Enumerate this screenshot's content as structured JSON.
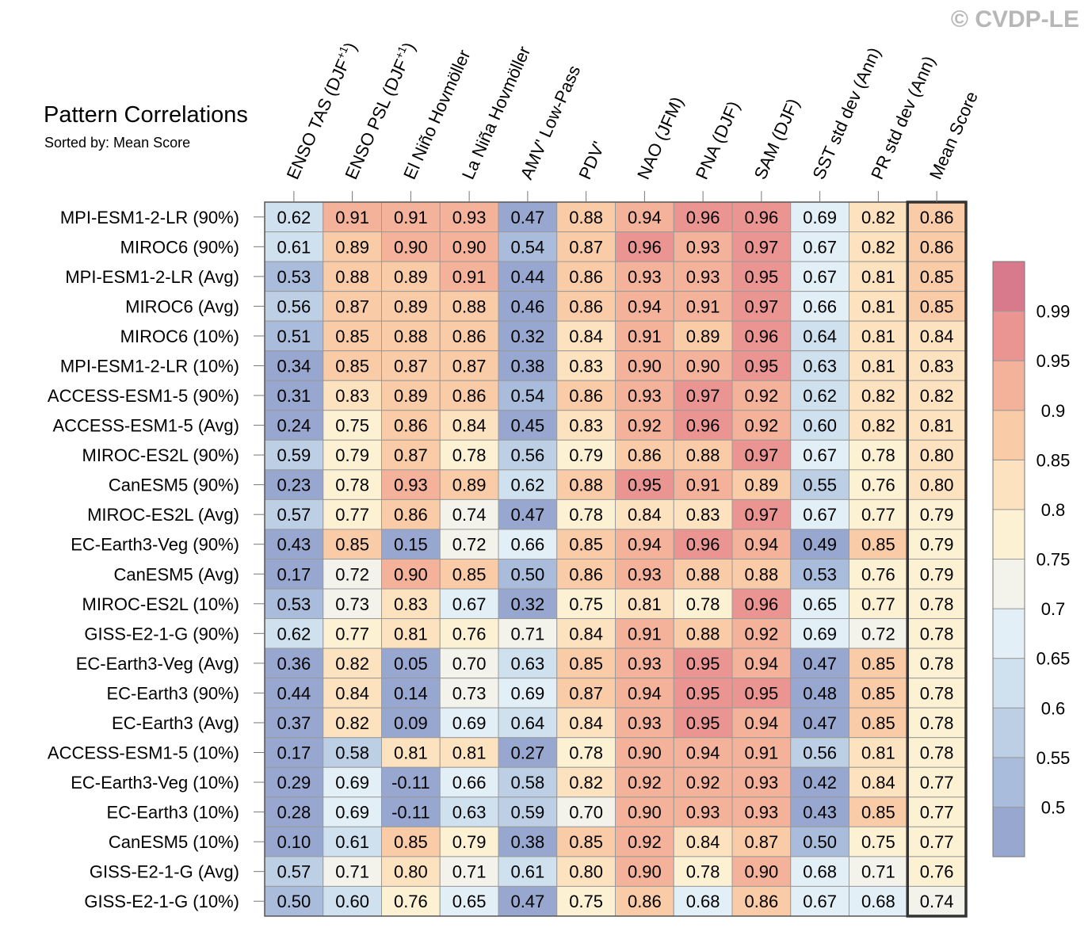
{
  "watermark": "© CVDP-LE",
  "chart_data": {
    "type": "heatmap",
    "title": "Pattern Correlations",
    "subtitle": "Sorted by: Mean Score",
    "columns": [
      "ENSO TAS (DJF⁺¹)",
      "ENSO PSL (DJF⁺¹)",
      "El Niño Hovmöller",
      "La Niña Hovmöller",
      "AMV' Low-Pass",
      "PDV'",
      "NAO (JFM)",
      "PNA (DJF)",
      "SAM (DJF)",
      "SST std dev (Ann)",
      "PR std dev (Ann)",
      "Mean Score"
    ],
    "rows": [
      "MPI-ESM1-2-LR (90%)",
      "MIROC6 (90%)",
      "MPI-ESM1-2-LR (Avg)",
      "MIROC6 (Avg)",
      "MIROC6 (10%)",
      "MPI-ESM1-2-LR (10%)",
      "ACCESS-ESM1-5 (90%)",
      "ACCESS-ESM1-5 (Avg)",
      "MIROC-ES2L (90%)",
      "CanESM5 (90%)",
      "MIROC-ES2L (Avg)",
      "EC-Earth3-Veg (90%)",
      "CanESM5 (Avg)",
      "MIROC-ES2L (10%)",
      "GISS-E2-1-G (90%)",
      "EC-Earth3-Veg (Avg)",
      "EC-Earth3 (90%)",
      "EC-Earth3 (Avg)",
      "ACCESS-ESM1-5 (10%)",
      "EC-Earth3-Veg (10%)",
      "EC-Earth3 (10%)",
      "CanESM5 (10%)",
      "GISS-E2-1-G (Avg)",
      "GISS-E2-1-G (10%)"
    ],
    "values": [
      [
        "0.62",
        "0.91",
        "0.91",
        "0.93",
        "0.47",
        "0.88",
        "0.94",
        "0.96",
        "0.96",
        "0.69",
        "0.82",
        "0.86"
      ],
      [
        "0.61",
        "0.89",
        "0.90",
        "0.90",
        "0.54",
        "0.87",
        "0.96",
        "0.93",
        "0.97",
        "0.67",
        "0.82",
        "0.86"
      ],
      [
        "0.53",
        "0.88",
        "0.89",
        "0.91",
        "0.44",
        "0.86",
        "0.93",
        "0.93",
        "0.95",
        "0.67",
        "0.81",
        "0.85"
      ],
      [
        "0.56",
        "0.87",
        "0.89",
        "0.88",
        "0.46",
        "0.86",
        "0.94",
        "0.91",
        "0.97",
        "0.66",
        "0.81",
        "0.85"
      ],
      [
        "0.51",
        "0.85",
        "0.88",
        "0.86",
        "0.32",
        "0.84",
        "0.91",
        "0.89",
        "0.96",
        "0.64",
        "0.81",
        "0.84"
      ],
      [
        "0.34",
        "0.85",
        "0.87",
        "0.87",
        "0.38",
        "0.83",
        "0.90",
        "0.90",
        "0.95",
        "0.63",
        "0.81",
        "0.83"
      ],
      [
        "0.31",
        "0.83",
        "0.89",
        "0.86",
        "0.54",
        "0.86",
        "0.93",
        "0.97",
        "0.92",
        "0.62",
        "0.82",
        "0.82"
      ],
      [
        "0.24",
        "0.75",
        "0.86",
        "0.84",
        "0.45",
        "0.83",
        "0.92",
        "0.96",
        "0.92",
        "0.60",
        "0.82",
        "0.81"
      ],
      [
        "0.59",
        "0.79",
        "0.87",
        "0.78",
        "0.56",
        "0.79",
        "0.86",
        "0.88",
        "0.97",
        "0.67",
        "0.78",
        "0.80"
      ],
      [
        "0.23",
        "0.78",
        "0.93",
        "0.89",
        "0.62",
        "0.88",
        "0.95",
        "0.91",
        "0.89",
        "0.55",
        "0.76",
        "0.80"
      ],
      [
        "0.57",
        "0.77",
        "0.86",
        "0.74",
        "0.47",
        "0.78",
        "0.84",
        "0.83",
        "0.97",
        "0.67",
        "0.77",
        "0.79"
      ],
      [
        "0.43",
        "0.85",
        "0.15",
        "0.72",
        "0.66",
        "0.85",
        "0.94",
        "0.96",
        "0.94",
        "0.49",
        "0.85",
        "0.79"
      ],
      [
        "0.17",
        "0.72",
        "0.90",
        "0.85",
        "0.50",
        "0.86",
        "0.93",
        "0.88",
        "0.88",
        "0.53",
        "0.76",
        "0.79"
      ],
      [
        "0.53",
        "0.73",
        "0.83",
        "0.67",
        "0.32",
        "0.75",
        "0.81",
        "0.78",
        "0.96",
        "0.65",
        "0.77",
        "0.78"
      ],
      [
        "0.62",
        "0.77",
        "0.81",
        "0.76",
        "0.71",
        "0.84",
        "0.91",
        "0.88",
        "0.92",
        "0.69",
        "0.72",
        "0.78"
      ],
      [
        "0.36",
        "0.82",
        "0.05",
        "0.70",
        "0.63",
        "0.85",
        "0.93",
        "0.95",
        "0.94",
        "0.47",
        "0.85",
        "0.78"
      ],
      [
        "0.44",
        "0.84",
        "0.14",
        "0.73",
        "0.69",
        "0.87",
        "0.94",
        "0.95",
        "0.95",
        "0.48",
        "0.85",
        "0.78"
      ],
      [
        "0.37",
        "0.82",
        "0.09",
        "0.69",
        "0.64",
        "0.84",
        "0.93",
        "0.95",
        "0.94",
        "0.47",
        "0.85",
        "0.78"
      ],
      [
        "0.17",
        "0.58",
        "0.81",
        "0.81",
        "0.27",
        "0.78",
        "0.90",
        "0.94",
        "0.91",
        "0.56",
        "0.81",
        "0.78"
      ],
      [
        "0.29",
        "0.69",
        "-0.11",
        "0.66",
        "0.58",
        "0.82",
        "0.92",
        "0.92",
        "0.93",
        "0.42",
        "0.84",
        "0.77"
      ],
      [
        "0.28",
        "0.69",
        "-0.11",
        "0.63",
        "0.59",
        "0.70",
        "0.90",
        "0.93",
        "0.93",
        "0.43",
        "0.85",
        "0.77"
      ],
      [
        "0.10",
        "0.61",
        "0.85",
        "0.79",
        "0.38",
        "0.85",
        "0.92",
        "0.84",
        "0.87",
        "0.50",
        "0.75",
        "0.77"
      ],
      [
        "0.57",
        "0.71",
        "0.80",
        "0.71",
        "0.61",
        "0.80",
        "0.90",
        "0.78",
        "0.90",
        "0.68",
        "0.71",
        "0.76"
      ],
      [
        "0.50",
        "0.60",
        "0.76",
        "0.65",
        "0.47",
        "0.75",
        "0.86",
        "0.68",
        "0.86",
        "0.67",
        "0.68",
        "0.74"
      ]
    ],
    "colorbar": {
      "ticks": [
        "0.5",
        "0.55",
        "0.6",
        "0.65",
        "0.7",
        "0.75",
        "0.8",
        "0.85",
        "0.9",
        "0.95",
        "0.99"
      ],
      "boundaries": [
        0.5,
        0.55,
        0.6,
        0.65,
        0.7,
        0.75,
        0.8,
        0.85,
        0.9,
        0.95,
        0.99
      ],
      "colors": [
        "#97a7cf",
        "#a9bcdb",
        "#bccfe5",
        "#cfe0ee",
        "#e3eff6",
        "#f3f3ec",
        "#fdf1d4",
        "#fde2bf",
        "#f9cba7",
        "#f3b299",
        "#eb9593",
        "#d97a8c"
      ]
    }
  }
}
